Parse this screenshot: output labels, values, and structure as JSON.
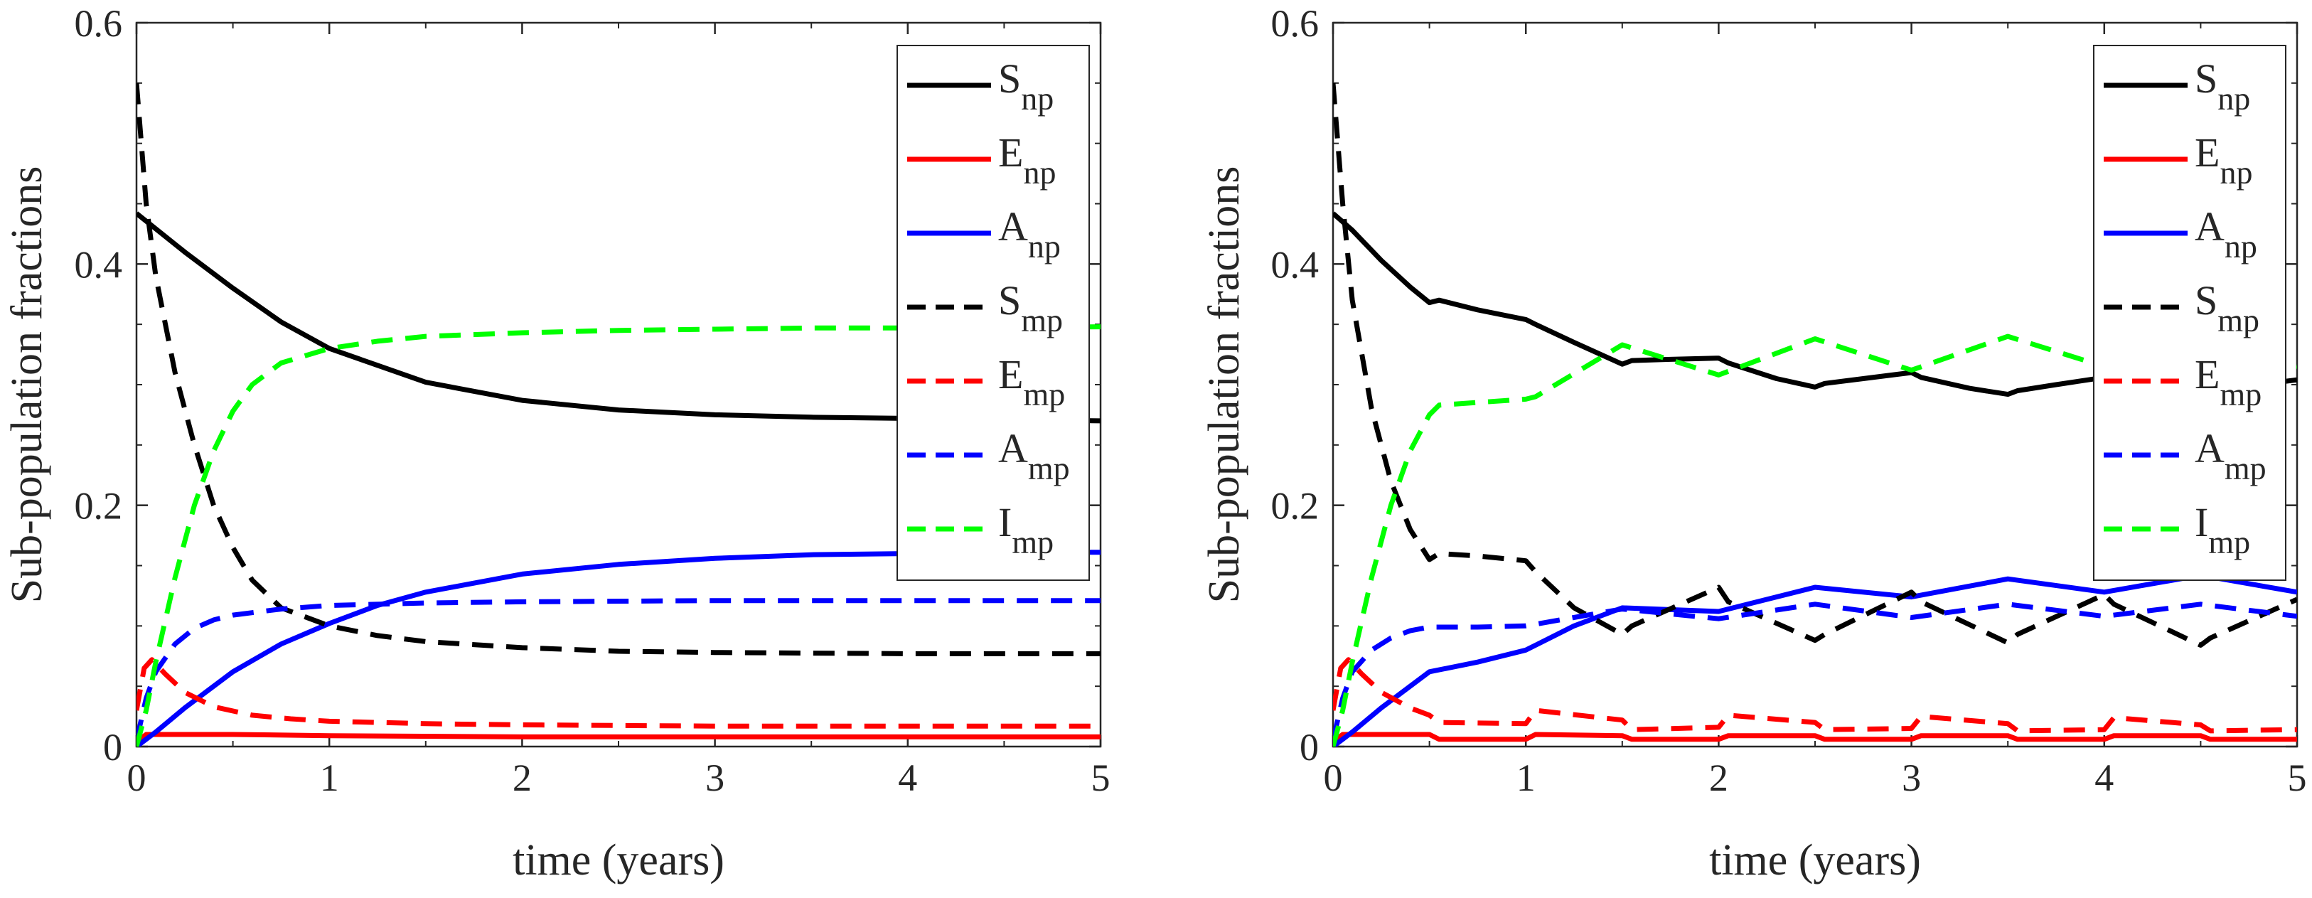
{
  "chart_data": [
    {
      "type": "line",
      "panel": "left",
      "xlabel": "time (years)",
      "ylabel": "Sub-population fractions",
      "xlim": [
        0,
        5
      ],
      "ylim": [
        0,
        0.6
      ],
      "xticks": [
        "0",
        "1",
        "2",
        "3",
        "4",
        "5"
      ],
      "yticks": [
        "0",
        "0.2",
        "0.4",
        "0.6"
      ],
      "grid": false,
      "legend_position": "top-right",
      "series": [
        {
          "id": "snp",
          "name_main": "S",
          "name_sub": "np",
          "color": "#000000",
          "dash": "solid",
          "x": [
            0,
            0.25,
            0.5,
            0.75,
            1,
            1.5,
            2,
            2.5,
            3,
            3.5,
            4,
            4.5,
            5
          ],
          "y": [
            0.442,
            0.41,
            0.38,
            0.352,
            0.33,
            0.302,
            0.287,
            0.279,
            0.275,
            0.273,
            0.272,
            0.271,
            0.27
          ]
        },
        {
          "id": "enp",
          "name_main": "E",
          "name_sub": "np",
          "color": "#ff0000",
          "dash": "solid",
          "x": [
            0,
            0.05,
            0.2,
            0.5,
            1,
            2,
            3,
            4,
            5
          ],
          "y": [
            0.004,
            0.01,
            0.01,
            0.01,
            0.009,
            0.008,
            0.008,
            0.008,
            0.008
          ]
        },
        {
          "id": "anp",
          "name_main": "A",
          "name_sub": "np",
          "color": "#0000ff",
          "dash": "solid",
          "x": [
            0,
            0.1,
            0.25,
            0.5,
            0.75,
            1,
            1.25,
            1.5,
            2,
            2.5,
            3,
            3.5,
            4,
            4.5,
            5
          ],
          "y": [
            0.0,
            0.012,
            0.032,
            0.062,
            0.085,
            0.102,
            0.117,
            0.128,
            0.143,
            0.151,
            0.156,
            0.159,
            0.16,
            0.161,
            0.161
          ]
        },
        {
          "id": "smp",
          "name_main": "S",
          "name_sub": "mp",
          "color": "#000000",
          "dash": "dashed",
          "x": [
            0,
            0.05,
            0.1,
            0.2,
            0.3,
            0.4,
            0.5,
            0.6,
            0.75,
            1,
            1.25,
            1.5,
            2,
            2.5,
            3,
            4,
            5
          ],
          "y": [
            0.55,
            0.45,
            0.39,
            0.31,
            0.25,
            0.2,
            0.165,
            0.138,
            0.115,
            0.1,
            0.092,
            0.087,
            0.082,
            0.079,
            0.078,
            0.077,
            0.077
          ]
        },
        {
          "id": "emp",
          "name_main": "E",
          "name_sub": "mp",
          "color": "#ff0000",
          "dash": "dashed",
          "x": [
            0,
            0.04,
            0.08,
            0.15,
            0.25,
            0.4,
            0.6,
            0.8,
            1,
            1.5,
            2,
            3,
            4,
            5
          ],
          "y": [
            0.03,
            0.065,
            0.072,
            0.06,
            0.045,
            0.033,
            0.026,
            0.023,
            0.021,
            0.019,
            0.018,
            0.017,
            0.017,
            0.017
          ]
        },
        {
          "id": "amp",
          "name_main": "A",
          "name_sub": "mp",
          "color": "#0000ff",
          "dash": "dashed",
          "x": [
            0,
            0.05,
            0.1,
            0.2,
            0.3,
            0.4,
            0.5,
            0.75,
            1,
            1.5,
            2,
            3,
            4,
            5
          ],
          "y": [
            0.005,
            0.04,
            0.062,
            0.085,
            0.098,
            0.105,
            0.109,
            0.114,
            0.117,
            0.119,
            0.12,
            0.121,
            0.121,
            0.121
          ]
        },
        {
          "id": "imp",
          "name_main": "I",
          "name_sub": "mp",
          "color": "#00ff00",
          "dash": "dashed",
          "x": [
            0,
            0.05,
            0.1,
            0.2,
            0.3,
            0.4,
            0.5,
            0.6,
            0.75,
            1,
            1.25,
            1.5,
            2,
            2.5,
            3,
            3.5,
            4,
            5
          ],
          "y": [
            0.0,
            0.03,
            0.07,
            0.14,
            0.2,
            0.245,
            0.278,
            0.3,
            0.318,
            0.33,
            0.336,
            0.34,
            0.343,
            0.345,
            0.346,
            0.347,
            0.347,
            0.348
          ]
        }
      ]
    },
    {
      "type": "line",
      "panel": "right",
      "xlabel": "time (years)",
      "ylabel": "Sub-population fractions",
      "xlim": [
        0,
        5
      ],
      "ylim": [
        0,
        0.6
      ],
      "xticks": [
        "0",
        "1",
        "2",
        "3",
        "4",
        "5"
      ],
      "yticks": [
        "0",
        "0.2",
        "0.4",
        "0.6"
      ],
      "grid": false,
      "legend_position": "top-right",
      "series": [
        {
          "id": "snp",
          "name_main": "S",
          "name_sub": "np",
          "color": "#000000",
          "dash": "solid",
          "x": [
            0,
            0.1,
            0.25,
            0.4,
            0.5,
            0.55,
            0.75,
            1,
            1.05,
            1.25,
            1.5,
            1.55,
            1.75,
            2,
            2.05,
            2.3,
            2.5,
            2.55,
            2.75,
            3,
            3.05,
            3.3,
            3.5,
            3.55,
            3.75,
            4,
            4.05,
            4.3,
            4.5,
            4.55,
            4.75,
            5
          ],
          "y": [
            0.442,
            0.428,
            0.403,
            0.381,
            0.368,
            0.37,
            0.362,
            0.354,
            0.35,
            0.335,
            0.317,
            0.32,
            0.321,
            0.322,
            0.318,
            0.305,
            0.298,
            0.301,
            0.305,
            0.31,
            0.306,
            0.297,
            0.292,
            0.295,
            0.3,
            0.306,
            0.303,
            0.297,
            0.292,
            0.296,
            0.299,
            0.304
          ]
        },
        {
          "id": "enp",
          "name_main": "E",
          "name_sub": "np",
          "color": "#ff0000",
          "dash": "solid",
          "x": [
            0,
            0.05,
            0.5,
            0.55,
            1,
            1.05,
            1.5,
            1.55,
            2,
            2.05,
            2.5,
            2.55,
            3,
            3.05,
            3.5,
            3.55,
            4,
            4.05,
            4.5,
            4.55,
            5
          ],
          "y": [
            0.004,
            0.01,
            0.01,
            0.006,
            0.006,
            0.01,
            0.009,
            0.006,
            0.006,
            0.009,
            0.009,
            0.006,
            0.006,
            0.009,
            0.009,
            0.006,
            0.006,
            0.009,
            0.009,
            0.006,
            0.006
          ]
        },
        {
          "id": "anp",
          "name_main": "A",
          "name_sub": "np",
          "color": "#0000ff",
          "dash": "solid",
          "x": [
            0,
            0.1,
            0.25,
            0.5,
            0.75,
            1,
            1.25,
            1.5,
            2,
            2.5,
            3,
            3.5,
            4,
            4.5,
            5
          ],
          "y": [
            0.0,
            0.012,
            0.032,
            0.062,
            0.07,
            0.08,
            0.1,
            0.115,
            0.112,
            0.132,
            0.124,
            0.139,
            0.128,
            0.142,
            0.128
          ]
        },
        {
          "id": "smp",
          "name_main": "S",
          "name_sub": "mp",
          "color": "#000000",
          "dash": "dashed",
          "x": [
            0,
            0.05,
            0.1,
            0.2,
            0.3,
            0.4,
            0.5,
            0.55,
            0.75,
            1,
            1.05,
            1.25,
            1.5,
            1.55,
            2,
            2.05,
            2.5,
            2.55,
            3,
            3.05,
            3.5,
            3.55,
            4,
            4.05,
            4.5,
            4.55,
            5
          ],
          "y": [
            0.55,
            0.45,
            0.37,
            0.28,
            0.22,
            0.18,
            0.155,
            0.16,
            0.158,
            0.154,
            0.145,
            0.115,
            0.093,
            0.1,
            0.132,
            0.12,
            0.088,
            0.093,
            0.128,
            0.12,
            0.086,
            0.093,
            0.126,
            0.118,
            0.084,
            0.09,
            0.122
          ]
        },
        {
          "id": "emp",
          "name_main": "E",
          "name_sub": "mp",
          "color": "#ff0000",
          "dash": "dashed",
          "x": [
            0,
            0.04,
            0.08,
            0.15,
            0.25,
            0.4,
            0.5,
            0.55,
            1,
            1.05,
            1.5,
            1.55,
            2,
            2.05,
            2.5,
            2.55,
            3,
            3.05,
            3.5,
            3.55,
            4,
            4.05,
            4.5,
            4.55,
            5
          ],
          "y": [
            0.03,
            0.065,
            0.072,
            0.06,
            0.045,
            0.032,
            0.026,
            0.02,
            0.019,
            0.03,
            0.022,
            0.014,
            0.016,
            0.026,
            0.02,
            0.014,
            0.015,
            0.025,
            0.019,
            0.013,
            0.014,
            0.024,
            0.018,
            0.013,
            0.014
          ]
        },
        {
          "id": "amp",
          "name_main": "A",
          "name_sub": "mp",
          "color": "#0000ff",
          "dash": "dashed",
          "x": [
            0,
            0.05,
            0.1,
            0.2,
            0.3,
            0.4,
            0.5,
            0.75,
            1,
            1.5,
            2,
            2.5,
            3,
            3.5,
            4,
            4.5,
            5
          ],
          "y": [
            0.005,
            0.04,
            0.062,
            0.08,
            0.09,
            0.096,
            0.099,
            0.099,
            0.1,
            0.114,
            0.106,
            0.118,
            0.107,
            0.118,
            0.108,
            0.118,
            0.108
          ]
        },
        {
          "id": "imp",
          "name_main": "I",
          "name_sub": "mp",
          "color": "#00ff00",
          "dash": "dashed",
          "x": [
            0,
            0.05,
            0.1,
            0.2,
            0.3,
            0.4,
            0.5,
            0.55,
            1,
            1.05,
            1.5,
            2,
            2.5,
            3,
            3.5,
            4,
            4.5,
            5
          ],
          "y": [
            0.0,
            0.03,
            0.07,
            0.14,
            0.2,
            0.245,
            0.275,
            0.283,
            0.288,
            0.29,
            0.333,
            0.308,
            0.338,
            0.312,
            0.34,
            0.315,
            0.33,
            0.315
          ]
        }
      ]
    }
  ]
}
